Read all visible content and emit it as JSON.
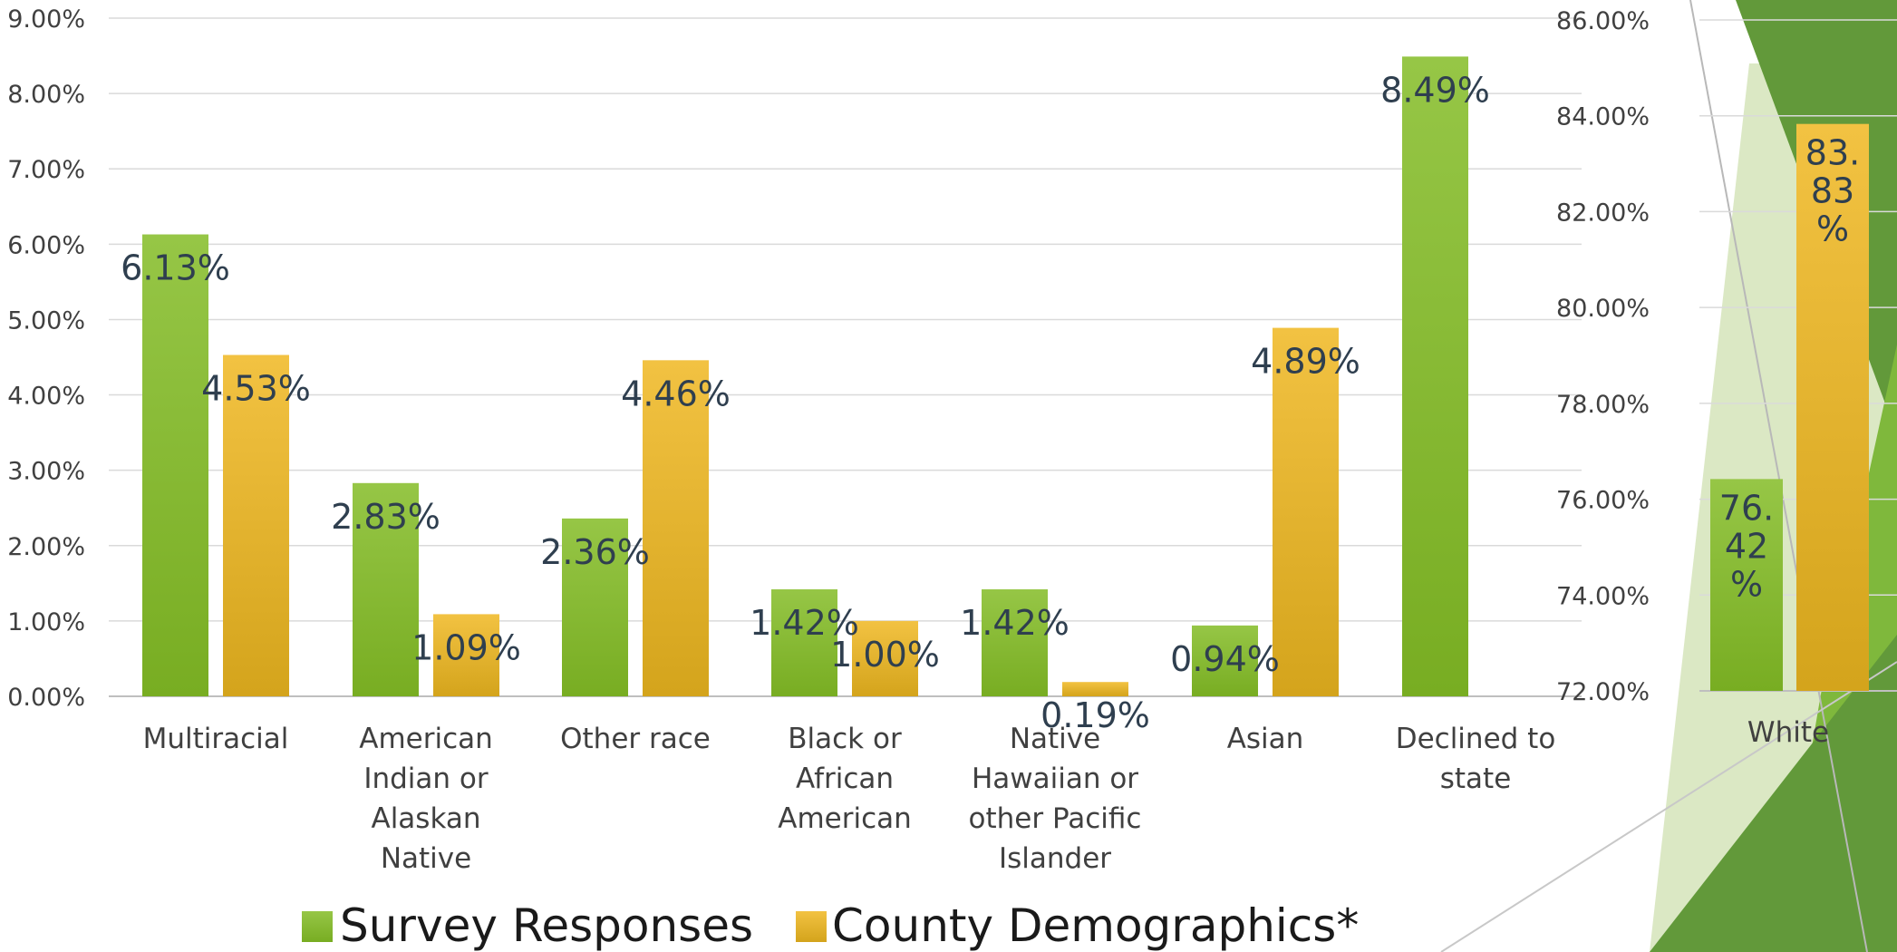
{
  "chart_data": [
    {
      "type": "bar",
      "categories": [
        [
          "Multiracial"
        ],
        [
          "American",
          "Indian or",
          "Alaskan",
          "Native"
        ],
        [
          "Other race"
        ],
        [
          "Black or",
          "African",
          "American"
        ],
        [
          "Native",
          "Hawaiian or",
          "other Pacific",
          "Islander"
        ],
        [
          "Asian"
        ],
        [
          "Declined to",
          "state"
        ]
      ],
      "ylim": [
        0,
        9
      ],
      "yticks": [
        "0.00%",
        "1.00%",
        "2.00%",
        "3.00%",
        "4.00%",
        "5.00%",
        "6.00%",
        "7.00%",
        "8.00%",
        "9.00%"
      ],
      "grid": true,
      "series": [
        {
          "name": "Survey Responses",
          "color": "#8cbf2f",
          "values": [
            6.13,
            2.83,
            2.36,
            1.42,
            1.42,
            0.94,
            8.49
          ],
          "labels": [
            "6.13%",
            "2.83%",
            "2.36%",
            "1.42%",
            "1.42%",
            "0.94%",
            "8.49%"
          ]
        },
        {
          "name": "County Demographics*",
          "color": "#e8b32a",
          "values": [
            4.53,
            1.09,
            4.46,
            1.0,
            0.19,
            4.89,
            null
          ],
          "labels": [
            "4.53%",
            "1.09%",
            "4.46%",
            "1.00%",
            "0.19%",
            "4.89%",
            ""
          ]
        }
      ],
      "legend": "bottom"
    },
    {
      "type": "bar",
      "categories": [
        [
          "White"
        ]
      ],
      "ylim": [
        72,
        86
      ],
      "yticks": [
        "72.00%",
        "74.00%",
        "76.00%",
        "78.00%",
        "80.00%",
        "82.00%",
        "84.00%",
        "86.00%"
      ],
      "grid": true,
      "series": [
        {
          "name": "Survey Responses",
          "color": "#8cbf2f",
          "values": [
            76.42
          ],
          "labels": [
            [
              "76.",
              "42",
              "%"
            ]
          ]
        },
        {
          "name": "County Demographics*",
          "color": "#e8b32a",
          "values": [
            83.83
          ],
          "labels": [
            [
              "83.",
              "83",
              "%"
            ]
          ]
        }
      ]
    }
  ],
  "legend": {
    "items": [
      {
        "label": "Survey Responses",
        "color": "#8cbf2f"
      },
      {
        "label": "County Demographics*",
        "color": "#e8b32a"
      }
    ]
  },
  "decoration": {
    "dark_green": "#62993a",
    "light_green": "#dbe8c4",
    "mid_green": "#8cc04a"
  }
}
